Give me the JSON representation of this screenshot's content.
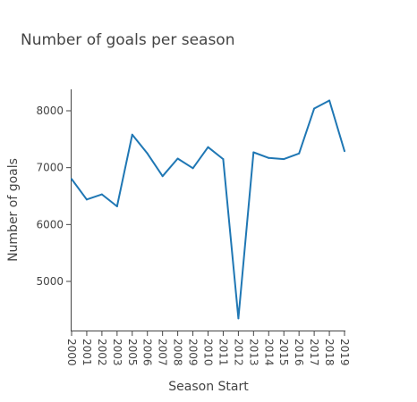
{
  "chart_data": {
    "type": "line",
    "title": "Number of goals per season",
    "xlabel": "Season Start",
    "ylabel": "Number of goals",
    "x": [
      "2000",
      "2001",
      "2002",
      "2003",
      "2005",
      "2006",
      "2007",
      "2008",
      "2009",
      "2010",
      "2011",
      "2012",
      "2013",
      "2014",
      "2015",
      "2016",
      "2017",
      "2018",
      "2019"
    ],
    "series": [
      {
        "values": [
          6800,
          6440,
          6530,
          6320,
          7580,
          7250,
          6850,
          7160,
          6990,
          7360,
          7150,
          4350,
          7270,
          7170,
          7150,
          7250,
          8040,
          8180,
          7290
        ]
      }
    ],
    "yticks": [
      5000,
      6000,
      7000,
      8000
    ],
    "ytick_labels": [
      "5000",
      "6000",
      "7000",
      "8000"
    ],
    "ylim": [
      4150,
      8400
    ],
    "grid": false,
    "line_color": "#1f77b4",
    "axis_color": "#444444"
  }
}
